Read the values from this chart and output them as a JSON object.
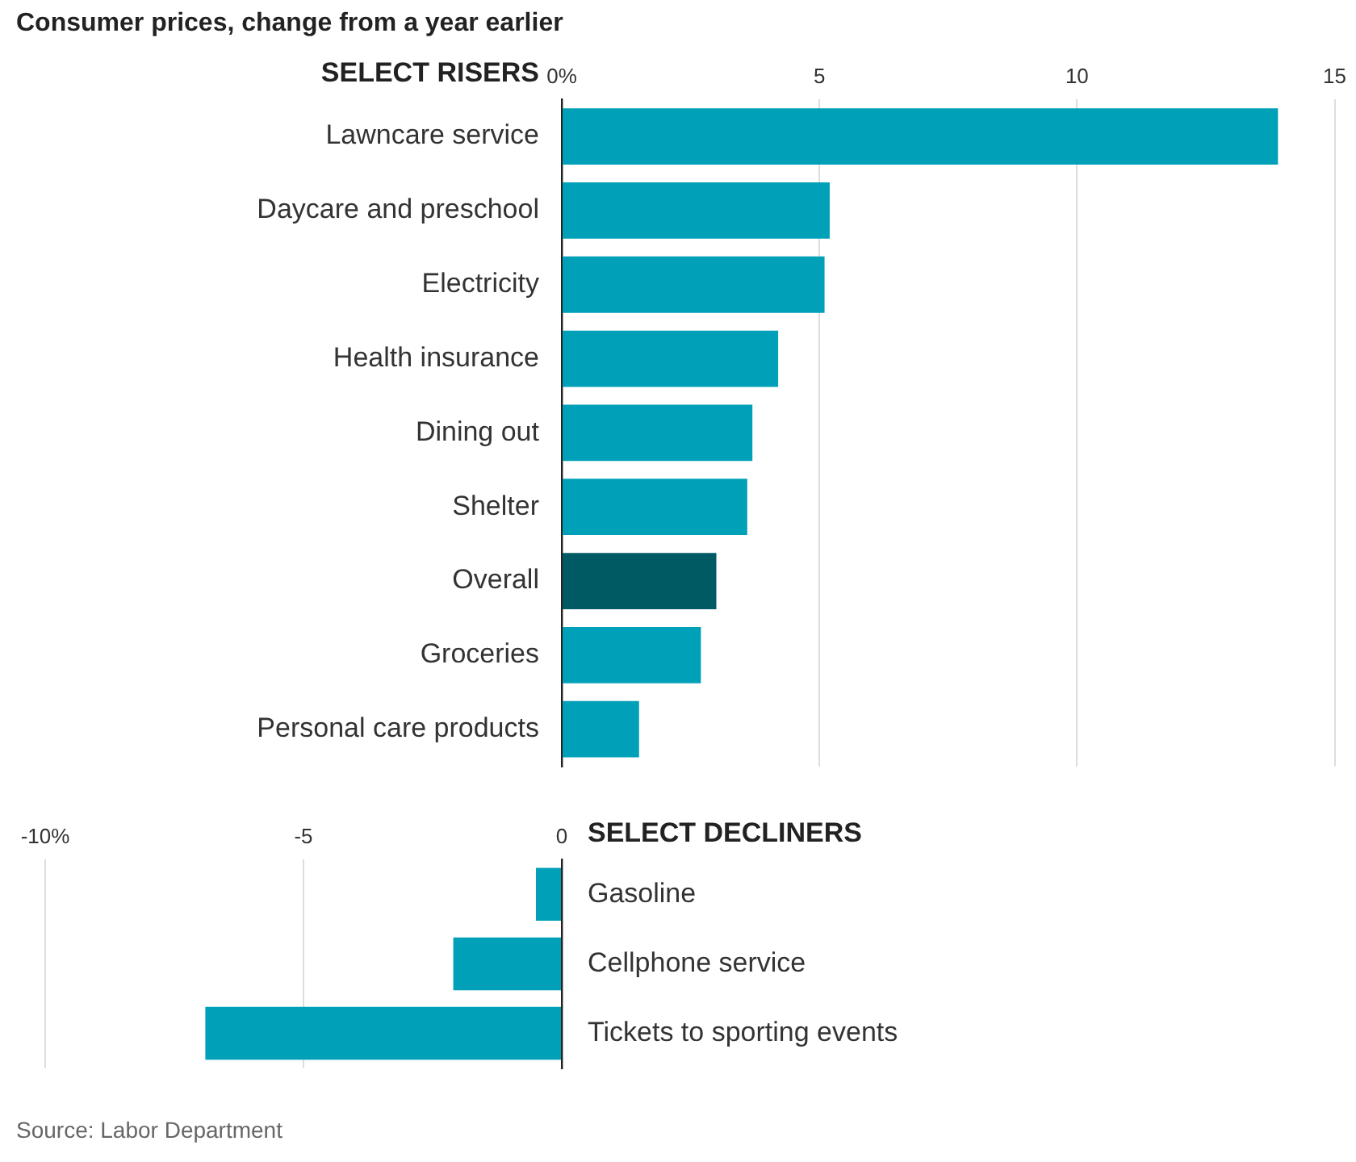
{
  "chart_data": [
    {
      "type": "bar",
      "orientation": "horizontal",
      "title": "Consumer prices, change from a year earlier",
      "subtitle": "SELECT RISERS",
      "categories": [
        "Lawncare service",
        "Daycare and preschool",
        "Electricity",
        "Health insurance",
        "Dining out",
        "Shelter",
        "Overall",
        "Groceries",
        "Personal care products"
      ],
      "values": [
        13.9,
        5.2,
        5.1,
        4.2,
        3.7,
        3.6,
        3.0,
        2.7,
        1.5
      ],
      "colors": [
        "#00a0b8",
        "#00a0b8",
        "#00a0b8",
        "#00a0b8",
        "#00a0b8",
        "#00a0b8",
        "#005a64",
        "#00a0b8",
        "#00a0b8"
      ],
      "xlim": [
        0,
        15
      ],
      "xticks": [
        {
          "value": 0,
          "label": "0%"
        },
        5,
        10,
        15
      ],
      "grid": "x"
    },
    {
      "type": "bar",
      "orientation": "horizontal",
      "subtitle": "SELECT DECLINERS",
      "categories": [
        "Gasoline",
        "Cellphone service",
        "Tickets to sporting events"
      ],
      "values": [
        -0.5,
        -2.1,
        -6.9
      ],
      "colors": [
        "#00a0b8",
        "#00a0b8",
        "#00a0b8"
      ],
      "xlim": [
        -10,
        0
      ],
      "xticks": [
        {
          "value": -10,
          "label": "-10%"
        },
        -5,
        0
      ],
      "grid": "x",
      "annotations": [
        "Source: Labor Department"
      ]
    }
  ]
}
